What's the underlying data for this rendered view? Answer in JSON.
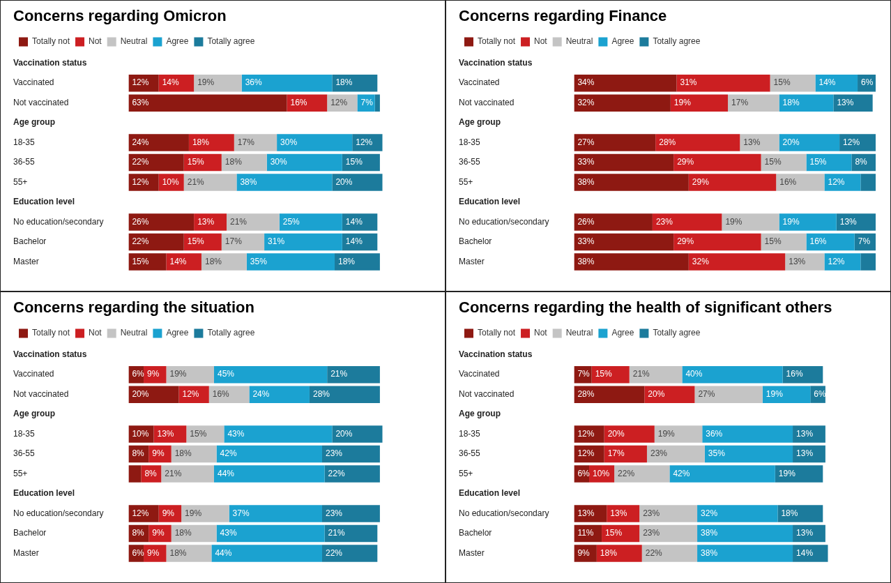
{
  "chart_data": [
    {
      "type": "bar",
      "title": "Concerns regarding Omicron",
      "orientation": "horizontal",
      "stacked": true,
      "legend": "top left",
      "tick_labels": "y",
      "categories": [
        "Vaccination status",
        "Vaccinated",
        "Not vaccinated",
        "Age group",
        "18-35",
        "36-55",
        "55+",
        "Education level",
        "No education/secondary",
        "Bachelor",
        "Master"
      ],
      "series": [
        {
          "name": "Totally not",
          "color": "#8e1912",
          "values": [
            null,
            12,
            63,
            null,
            24,
            22,
            12,
            null,
            26,
            22,
            15
          ],
          "value_labels": [
            null,
            "12%",
            "63%",
            null,
            "24%",
            "22%",
            "12%",
            null,
            "26%",
            "22%",
            "15%"
          ]
        },
        {
          "name": "Not",
          "color": "#cc1f22",
          "values": [
            null,
            14,
            16,
            null,
            18,
            15,
            10,
            null,
            13,
            15,
            14
          ],
          "value_labels": [
            null,
            "14%",
            "16%",
            null,
            "18%",
            "15%",
            "10%",
            null,
            "13%",
            "15%",
            "14%"
          ]
        },
        {
          "name": "Neutral",
          "color": "#c4c4c4",
          "values": [
            null,
            19,
            12,
            null,
            17,
            18,
            21,
            null,
            21,
            17,
            18
          ],
          "value_labels": [
            null,
            "19%",
            "12%",
            null,
            "17%",
            "18%",
            "21%",
            null,
            "21%",
            "17%",
            "18%"
          ]
        },
        {
          "name": "Agree",
          "color": "#1ba2d0",
          "values": [
            null,
            36,
            7,
            null,
            30,
            30,
            38,
            null,
            25,
            31,
            35
          ],
          "value_labels": [
            null,
            "36%",
            "7%",
            null,
            "30%",
            "30%",
            "38%",
            null,
            "25%",
            "31%",
            "35%"
          ]
        },
        {
          "name": "Totally agree",
          "color": "#1c7b9c",
          "values": [
            null,
            18,
            2,
            null,
            12,
            15,
            20,
            null,
            14,
            14,
            18
          ],
          "value_labels": [
            null,
            "18%",
            null,
            null,
            "12%",
            "15%",
            "20%",
            null,
            "14%",
            "14%",
            "18%"
          ]
        }
      ]
    },
    {
      "type": "bar",
      "title": "Concerns regarding Finance",
      "orientation": "horizontal",
      "stacked": true,
      "legend": "top left",
      "tick_labels": "y",
      "categories": [
        "Vaccination status",
        "Vaccinated",
        "Not vaccinated",
        "Age group",
        "18-35",
        "36-55",
        "55+",
        "Education level",
        "No education/secondary",
        "Bachelor",
        "Master"
      ],
      "series": [
        {
          "name": "Totally not",
          "color": "#8e1912",
          "values": [
            null,
            34,
            32,
            null,
            27,
            33,
            38,
            null,
            26,
            33,
            38
          ],
          "value_labels": [
            null,
            "34%",
            "32%",
            null,
            "27%",
            "33%",
            "38%",
            null,
            "26%",
            "33%",
            "38%"
          ]
        },
        {
          "name": "Not",
          "color": "#cc1f22",
          "values": [
            null,
            31,
            19,
            null,
            28,
            29,
            29,
            null,
            23,
            29,
            32
          ],
          "value_labels": [
            null,
            "31%",
            "19%",
            null,
            "28%",
            "29%",
            "29%",
            null,
            "23%",
            "29%",
            "32%"
          ]
        },
        {
          "name": "Neutral",
          "color": "#c4c4c4",
          "values": [
            null,
            15,
            17,
            null,
            13,
            15,
            16,
            null,
            19,
            15,
            13
          ],
          "value_labels": [
            null,
            "15%",
            "17%",
            null,
            "13%",
            "15%",
            "16%",
            null,
            "19%",
            "15%",
            "13%"
          ]
        },
        {
          "name": "Agree",
          "color": "#1ba2d0",
          "values": [
            null,
            14,
            18,
            null,
            20,
            15,
            12,
            null,
            19,
            16,
            12
          ],
          "value_labels": [
            null,
            "14%",
            "18%",
            null,
            "20%",
            "15%",
            "12%",
            null,
            "19%",
            "16%",
            "12%"
          ]
        },
        {
          "name": "Totally agree",
          "color": "#1c7b9c",
          "values": [
            null,
            6,
            13,
            null,
            12,
            8,
            5,
            null,
            13,
            7,
            5
          ],
          "value_labels": [
            null,
            "6%",
            "13%",
            null,
            "12%",
            "8%",
            null,
            null,
            "13%",
            "7%",
            null
          ]
        }
      ]
    },
    {
      "type": "bar",
      "title": "Concerns regarding the situation",
      "orientation": "horizontal",
      "stacked": true,
      "legend": "top left",
      "tick_labels": "y",
      "categories": [
        "Vaccination status",
        "Vaccinated",
        "Not vaccinated",
        "Age group",
        "18-35",
        "36-55",
        "55+",
        "Education level",
        "No education/secondary",
        "Bachelor",
        "Master"
      ],
      "series": [
        {
          "name": "Totally not",
          "color": "#8e1912",
          "values": [
            null,
            6,
            20,
            null,
            10,
            8,
            5,
            null,
            12,
            8,
            6
          ],
          "value_labels": [
            null,
            "6%",
            "20%",
            null,
            "10%",
            "8%",
            null,
            null,
            "12%",
            "8%",
            "6%"
          ]
        },
        {
          "name": "Not",
          "color": "#cc1f22",
          "values": [
            null,
            9,
            12,
            null,
            13,
            9,
            8,
            null,
            9,
            9,
            9
          ],
          "value_labels": [
            null,
            "9%",
            "12%",
            null,
            "13%",
            "9%",
            "8%",
            null,
            "9%",
            "9%",
            "9%"
          ]
        },
        {
          "name": "Neutral",
          "color": "#c4c4c4",
          "values": [
            null,
            19,
            16,
            null,
            15,
            18,
            21,
            null,
            19,
            18,
            18
          ],
          "value_labels": [
            null,
            "19%",
            "16%",
            null,
            "15%",
            "18%",
            "21%",
            null,
            "19%",
            "18%",
            "18%"
          ]
        },
        {
          "name": "Agree",
          "color": "#1ba2d0",
          "values": [
            null,
            45,
            24,
            null,
            43,
            42,
            44,
            null,
            37,
            43,
            44
          ],
          "value_labels": [
            null,
            "45%",
            "24%",
            null,
            "43%",
            "42%",
            "44%",
            null,
            "37%",
            "43%",
            "44%"
          ]
        },
        {
          "name": "Totally agree",
          "color": "#1c7b9c",
          "values": [
            null,
            21,
            28,
            null,
            20,
            23,
            22,
            null,
            23,
            21,
            22
          ],
          "value_labels": [
            null,
            "21%",
            "28%",
            null,
            "20%",
            "23%",
            "22%",
            null,
            "23%",
            "21%",
            "22%"
          ]
        }
      ]
    },
    {
      "type": "bar",
      "title": "Concerns regarding the health of significant others",
      "orientation": "horizontal",
      "stacked": true,
      "legend": "top left",
      "tick_labels": "y",
      "categories": [
        "Vaccination status",
        "Vaccinated",
        "Not vaccinated",
        "Age group",
        "18-35",
        "36-55",
        "55+",
        "Education level",
        "No education/secondary",
        "Bachelor",
        "Master"
      ],
      "series": [
        {
          "name": "Totally not",
          "color": "#8e1912",
          "values": [
            null,
            7,
            28,
            null,
            12,
            12,
            6,
            null,
            13,
            11,
            9
          ],
          "value_labels": [
            null,
            "7%",
            "28%",
            null,
            "12%",
            "12%",
            "6%",
            null,
            "13%",
            "11%",
            "9%"
          ]
        },
        {
          "name": "Not",
          "color": "#cc1f22",
          "values": [
            null,
            15,
            20,
            null,
            20,
            17,
            10,
            null,
            13,
            15,
            18
          ],
          "value_labels": [
            null,
            "15%",
            "20%",
            null,
            "20%",
            "17%",
            "10%",
            null,
            "13%",
            "15%",
            "18%"
          ]
        },
        {
          "name": "Neutral",
          "color": "#c4c4c4",
          "values": [
            null,
            21,
            27,
            null,
            19,
            23,
            22,
            null,
            23,
            23,
            22
          ],
          "value_labels": [
            null,
            "21%",
            "27%",
            null,
            "19%",
            "23%",
            "22%",
            null,
            "23%",
            "23%",
            "22%"
          ]
        },
        {
          "name": "Agree",
          "color": "#1ba2d0",
          "values": [
            null,
            40,
            19,
            null,
            36,
            35,
            42,
            null,
            32,
            38,
            38
          ],
          "value_labels": [
            null,
            "40%",
            "19%",
            null,
            "36%",
            "35%",
            "42%",
            null,
            "32%",
            "38%",
            "38%"
          ]
        },
        {
          "name": "Totally agree",
          "color": "#1c7b9c",
          "values": [
            null,
            16,
            6,
            null,
            13,
            13,
            19,
            null,
            18,
            13,
            14
          ],
          "value_labels": [
            null,
            "16%",
            "6%",
            null,
            "13%",
            "13%",
            "19%",
            null,
            "18%",
            "13%",
            "14%"
          ]
        }
      ]
    }
  ]
}
